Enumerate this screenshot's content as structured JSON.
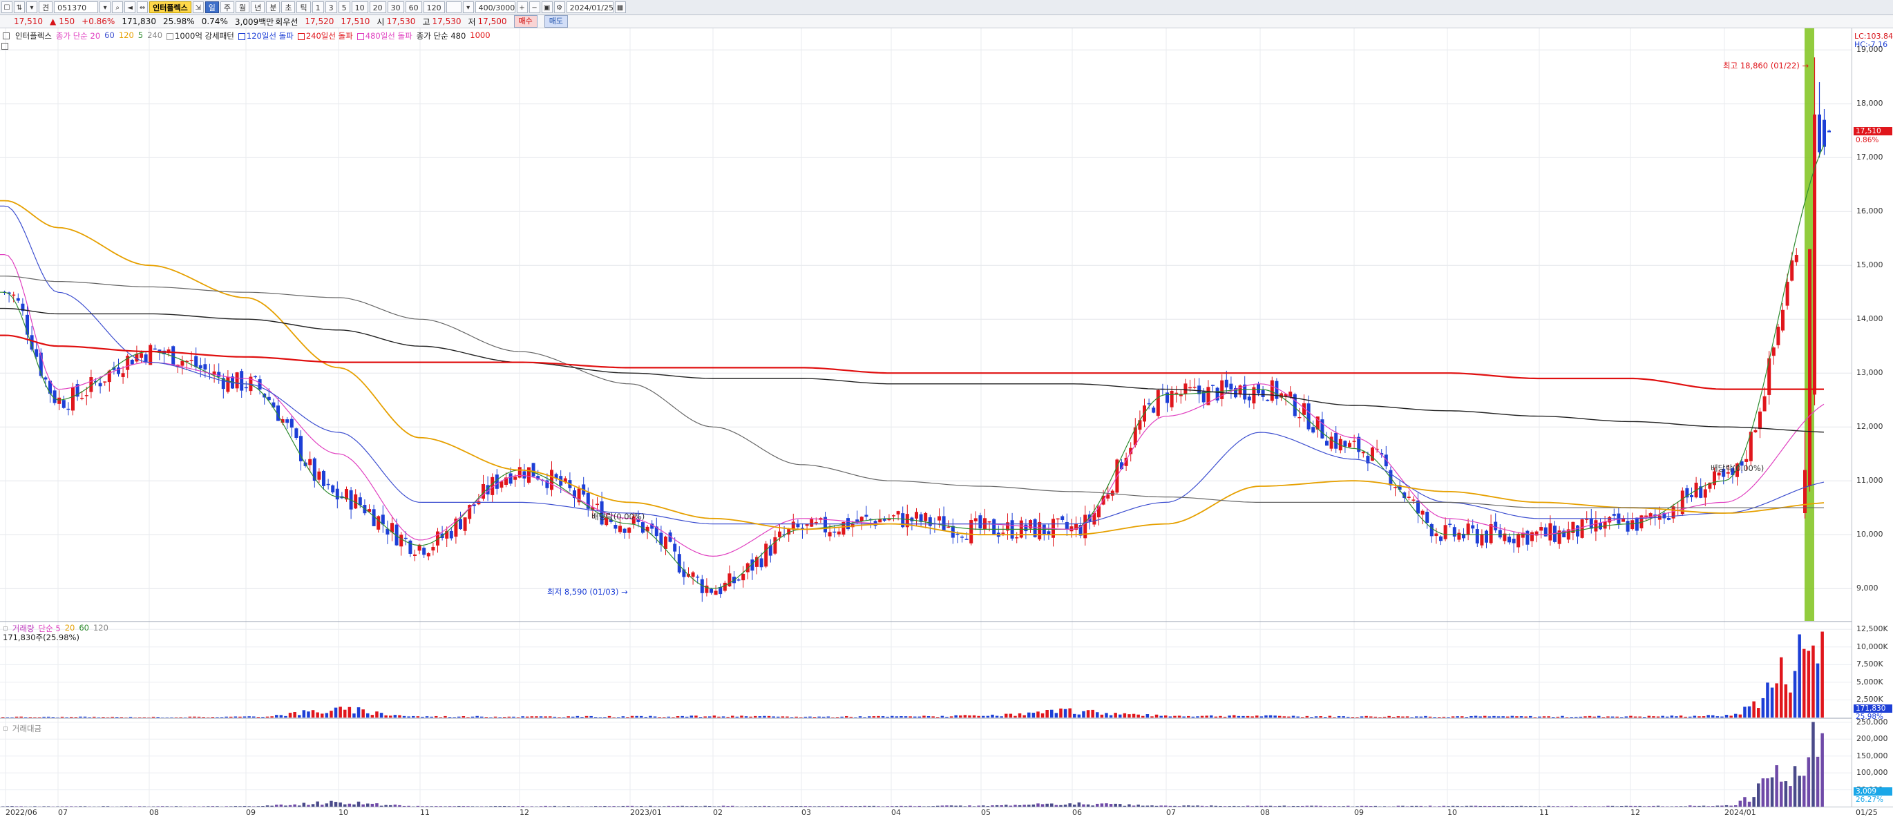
{
  "toolbar": {
    "market": "견",
    "code": "051370",
    "indicator_badge": "인터플렉스",
    "period_tabs": [
      "일",
      "주",
      "월",
      "년",
      "분",
      "초",
      "틱"
    ],
    "intervals": [
      "1",
      "3",
      "5",
      "10",
      "20",
      "30",
      "60",
      "120"
    ],
    "count_value": "400/3000",
    "date_value": "2024/01/25"
  },
  "quote": {
    "price": "17,510",
    "change_mark": "▲",
    "change": "150",
    "change_pct": "+0.86%",
    "volume": "171,830",
    "turnover_pct": "25.98%",
    "ratio": "0.74%",
    "amount": "3,009백만",
    "label_turnover": "회우선",
    "v1": "17,520",
    "v2": "17,510",
    "label_open": "시",
    "open": "17,530",
    "label_high": "고",
    "high": "17,530",
    "label_low": "저",
    "low": "17,500",
    "buy": "매수",
    "sell": "매도"
  },
  "legend_main": {
    "name": "인터플렉스",
    "ma_label": "종가 단순 20",
    "ma60": "60",
    "ma120": "120",
    "ma5": "5",
    "ma240": "240",
    "pattern": "1000억 강세패턴",
    "break120": "120일선 돌파",
    "break240": "240일선 돌파",
    "break480": "480일선 돌파",
    "ma_label2": "종가 단순 480",
    "ma1000": "1000"
  },
  "legend_vol": {
    "name": "거래량",
    "ma": "단순 5",
    "ma20": "20",
    "ma60": "60",
    "ma120": "120",
    "value": "171,830주(25.98%)"
  },
  "legend_amt": {
    "name": "거래대금"
  },
  "annotations": {
    "high": "최고 18,860 (01/22)",
    "low": "최저 8,590 (01/03)",
    "div1": "배당락(0.00%)",
    "div2": "배당락(0.00%)"
  },
  "colors": {
    "up": "#e0161c",
    "down": "#1d3fd6",
    "ma5": "#2e8b2e",
    "ma20": "#e040c0",
    "ma60": "#3d4fd0",
    "ma120": "#e6a000",
    "ma240": "#666666",
    "ma480": "#222222",
    "ma1000": "#e01010",
    "highlight": "#7fc31c"
  },
  "yaxis": {
    "top_tags": [
      "LC:103.84",
      "HC:-7.16"
    ],
    "labels": [
      "19,000",
      "18,000",
      "17,000",
      "16,000",
      "15,000",
      "14,000",
      "13,000",
      "12,000",
      "11,000",
      "10,000",
      "9,000"
    ],
    "price_tag": "17,510",
    "pct_tag": "0.86%",
    "vol_labels": [
      "12,500K",
      "10,000K",
      "7,500K",
      "5,000K",
      "2,500K"
    ],
    "vol_tag": "171,830",
    "vol_pct": "25.98%",
    "amt_labels": [
      "250,000",
      "200,000",
      "150,000",
      "100,000",
      "50,000"
    ],
    "amt_tag": "3,009",
    "amt_pct": "26.27%"
  },
  "xaxis": {
    "labels": [
      "2022/06",
      "07",
      "08",
      "09",
      "10",
      "11",
      "12",
      "2023/01",
      "02",
      "03",
      "04",
      "05",
      "06",
      "07",
      "08",
      "09",
      "10",
      "11",
      "12",
      "2024/01",
      "01/25"
    ]
  },
  "chart_data": {
    "type": "candlestick",
    "ylim": [
      8400,
      19400
    ],
    "x": [
      "2022/06",
      "07",
      "08",
      "09",
      "10",
      "11",
      "12",
      "2023/01",
      "02",
      "03",
      "04",
      "05",
      "06",
      "07",
      "08",
      "09",
      "10",
      "11",
      "12",
      "2024/01",
      "01/25"
    ],
    "series": [
      {
        "name": "종가 단순 5",
        "values": [
          14500,
          12500,
          13400,
          12800,
          10700,
          9800,
          11200,
          10200,
          9000,
          10100,
          10300,
          10100,
          10100,
          12600,
          12700,
          11600,
          10000,
          10000,
          10200,
          11000,
          17500
        ]
      },
      {
        "name": "종가 단순 20",
        "values": [
          15200,
          12700,
          13200,
          12900,
          11500,
          9900,
          11100,
          10300,
          9600,
          10300,
          10200,
          10200,
          10100,
          12200,
          12800,
          11800,
          10300,
          10000,
          10300,
          10600,
          12500
        ]
      },
      {
        "name": "종가 단순 60",
        "values": [
          16100,
          14500,
          13200,
          12800,
          11900,
          10600,
          10600,
          10400,
          10200,
          10200,
          10200,
          10200,
          10200,
          10600,
          11900,
          11400,
          10600,
          10300,
          10300,
          10400,
          11000
        ]
      },
      {
        "name": "종가 단순 120",
        "values": [
          16200,
          15700,
          15000,
          14400,
          13100,
          11800,
          11200,
          10600,
          10300,
          10100,
          10200,
          10000,
          10000,
          10200,
          10900,
          11000,
          10800,
          10600,
          10500,
          10400,
          10600
        ]
      },
      {
        "name": "종가 단순 240",
        "values": [
          14800,
          14700,
          14600,
          14500,
          14400,
          14000,
          13400,
          12800,
          12000,
          11300,
          11000,
          10900,
          10800,
          10700,
          10600,
          10600,
          10600,
          10500,
          10500,
          10500,
          10500
        ]
      },
      {
        "name": "종가 단순 480",
        "values": [
          14200,
          14100,
          14100,
          14000,
          13800,
          13500,
          13200,
          13000,
          12900,
          12900,
          12800,
          12800,
          12800,
          12700,
          12600,
          12400,
          12300,
          12200,
          12100,
          12000,
          11900
        ]
      },
      {
        "name": "종가 단순 1000",
        "values": [
          13700,
          13500,
          13400,
          13300,
          13200,
          13200,
          13200,
          13100,
          13100,
          13100,
          13000,
          13000,
          13000,
          13000,
          13000,
          13000,
          13000,
          12900,
          12900,
          12700,
          12700
        ]
      }
    ],
    "volume": {
      "unit": "K",
      "ylim": [
        0,
        13500
      ],
      "values": [
        100,
        90,
        80,
        120,
        1100,
        160,
        140,
        150,
        200,
        120,
        160,
        250,
        900,
        260,
        230,
        160,
        180,
        150,
        170,
        260,
        12500
      ]
    },
    "amount": {
      "ylim": [
        0,
        260000
      ],
      "values": [
        1200,
        1100,
        1000,
        1400,
        12000,
        1600,
        1500,
        1600,
        1900,
        1300,
        1700,
        3000,
        9000,
        2600,
        2400,
        1800,
        1900,
        1700,
        1900,
        3000,
        240000
      ]
    }
  }
}
